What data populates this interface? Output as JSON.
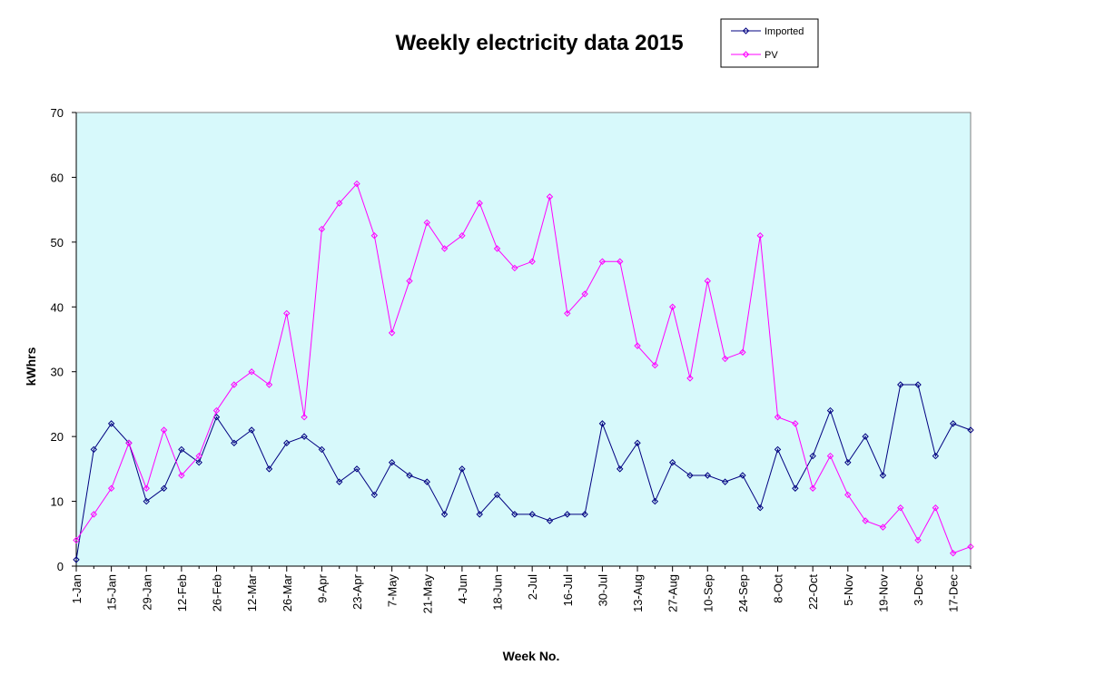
{
  "chart_data": {
    "type": "line",
    "title": "Weekly electricity data 2015",
    "xlabel": "Week No.",
    "ylabel": "kWhrs",
    "ylim": [
      0,
      70
    ],
    "y_ticks": [
      0,
      10,
      20,
      30,
      40,
      50,
      60,
      70
    ],
    "grid": false,
    "legend_position": "top-right",
    "plot_background": "#d7f9fb",
    "x_tick_labels": [
      "1-Jan",
      "15-Jan",
      "29-Jan",
      "12-Feb",
      "26-Feb",
      "12-Mar",
      "26-Mar",
      "9-Apr",
      "23-Apr",
      "7-May",
      "21-May",
      "4-Jun",
      "18-Jun",
      "2-Jul",
      "16-Jul",
      "30-Jul",
      "13-Aug",
      "27-Aug",
      "10-Sep",
      "24-Sep",
      "8-Oct",
      "22-Oct",
      "5-Nov",
      "19-Nov",
      "3-Dec",
      "17-Dec"
    ],
    "series": [
      {
        "name": "Imported",
        "color": "#000080",
        "values": [
          1,
          18,
          22,
          19,
          10,
          12,
          18,
          16,
          23,
          19,
          21,
          15,
          19,
          20,
          18,
          13,
          15,
          11,
          16,
          14,
          13,
          8,
          15,
          8,
          11,
          8,
          8,
          7,
          8,
          8,
          22,
          15,
          19,
          10,
          16,
          14,
          14,
          13,
          14,
          9,
          18,
          12,
          17,
          24,
          16,
          20,
          14,
          28,
          28,
          17,
          22,
          21
        ]
      },
      {
        "name": "PV",
        "color": "#ff00ff",
        "values": [
          4,
          8,
          12,
          19,
          12,
          21,
          14,
          17,
          24,
          28,
          30,
          28,
          39,
          23,
          52,
          56,
          59,
          51,
          36,
          44,
          53,
          49,
          51,
          56,
          49,
          46,
          47,
          57,
          39,
          42,
          47,
          47,
          34,
          31,
          40,
          29,
          44,
          32,
          33,
          51,
          23,
          22,
          12,
          17,
          11,
          7,
          6,
          9,
          4,
          9,
          2,
          3
        ]
      }
    ]
  }
}
